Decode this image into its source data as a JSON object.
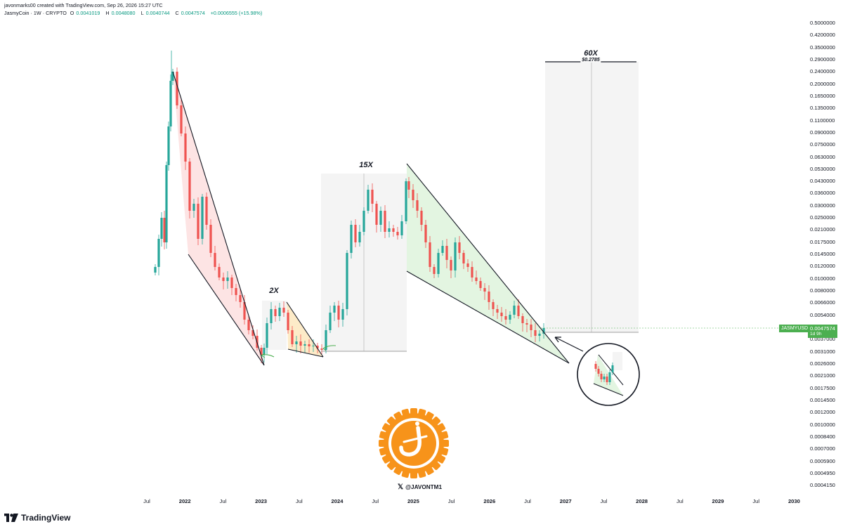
{
  "header": {
    "attribution": "javonmarks00 created with TradingView.com, Sep 26, 2026 15:27 UTC",
    "symbol": "JasmyCoin · 1W · CRYPTO",
    "open_label": "O",
    "open_value": "0.0041019",
    "high_label": "H",
    "high_value": "0.0048080",
    "low_label": "L",
    "low_value": "0.0040744",
    "close_label": "C",
    "close_value": "0.0047574",
    "change": "+0.0006555 (+15.98%)"
  },
  "price_axis": [
    "0.5000000",
    "0.4200000",
    "0.3500000",
    "0.2900000",
    "0.2400000",
    "0.2000000",
    "0.1650000",
    "0.1350000",
    "0.1100000",
    "0.0900000",
    "0.0750000",
    "0.0630000",
    "0.0530000",
    "0.0430000",
    "0.0360000",
    "0.0300000",
    "0.0250000",
    "0.0210000",
    "0.0175000",
    "0.0145000",
    "0.0120000",
    "0.0100000",
    "0.0080000",
    "0.0066000",
    "0.0054000",
    "0.0044000",
    "0.0037000",
    "0.0031000",
    "0.0026000",
    "0.0021000",
    "0.0017500",
    "0.0014500",
    "0.0012000",
    "0.0010000",
    "0.0008400",
    "0.0007000",
    "0.0005900",
    "0.0004950",
    "0.0004150"
  ],
  "time_axis": [
    {
      "label": "Jul",
      "year": false
    },
    {
      "label": "2022",
      "year": true
    },
    {
      "label": "Jul",
      "year": false
    },
    {
      "label": "2023",
      "year": true
    },
    {
      "label": "Jul",
      "year": false
    },
    {
      "label": "2024",
      "year": true
    },
    {
      "label": "Jul",
      "year": false
    },
    {
      "label": "2025",
      "year": true
    },
    {
      "label": "Jul",
      "year": false
    },
    {
      "label": "2026",
      "year": true
    },
    {
      "label": "Jul",
      "year": false
    },
    {
      "label": "2027",
      "year": true
    },
    {
      "label": "Jul",
      "year": false
    },
    {
      "label": "2028",
      "year": true
    },
    {
      "label": "Jul",
      "year": false
    },
    {
      "label": "2029",
      "year": true
    },
    {
      "label": "Jul",
      "year": false
    },
    {
      "label": "2030",
      "year": true
    }
  ],
  "current_price": {
    "symbol_tag": "JASMYUSD",
    "value": "0.0047574",
    "countdown": "1d 9h"
  },
  "annotations": {
    "mult_2x": "2X",
    "mult_15x": "15X",
    "mult_60x": "60X",
    "target_price": "$0.2785"
  },
  "social_handle": "@JAVONTM1",
  "brand": "TradingView",
  "colors": {
    "up": "#26a69a",
    "down": "#ef5350",
    "red_zone": "#fde4e4",
    "orange_zone": "#fdebc8",
    "green_zone": "#e3f5e1",
    "projection_box": "#f4f4f4",
    "logo_orange": "#f7931a",
    "badge_green": "#4caf50"
  }
}
